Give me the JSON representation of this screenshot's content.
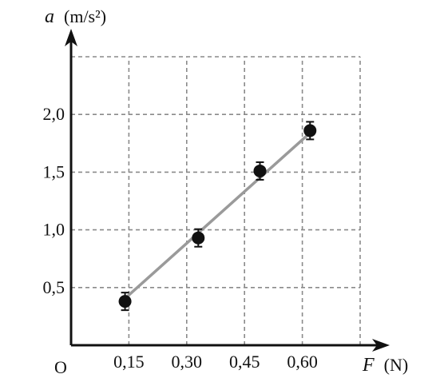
{
  "chart_data": {
    "type": "scatter",
    "x_axis": {
      "symbol": "F",
      "unit": "(N)"
    },
    "y_axis": {
      "symbol": "a",
      "unit": "(m/s²)"
    },
    "origin_label": "O",
    "x_tick_labels": [
      "0,15",
      "0,30",
      "0,45",
      "0,60"
    ],
    "x_ticks": [
      0.15,
      0.3,
      0.45,
      0.6
    ],
    "y_tick_labels": [
      "0,5",
      "1,0",
      "1,5",
      "2,0"
    ],
    "y_ticks": [
      0.5,
      1.0,
      1.5,
      2.0
    ],
    "xlim": [
      0,
      0.75
    ],
    "ylim": [
      0,
      2.5
    ],
    "grid": true,
    "grid_style": "dashed",
    "points": [
      {
        "x": 0.14,
        "y": 0.38
      },
      {
        "x": 0.33,
        "y": 0.93
      },
      {
        "x": 0.49,
        "y": 1.51
      },
      {
        "x": 0.62,
        "y": 1.86
      }
    ],
    "fit_line": {
      "x": [
        0.145,
        0.62
      ],
      "y": [
        0.42,
        1.84
      ]
    },
    "colors": {
      "points": "#111111",
      "fit_line": "#9a9a9a",
      "grid": "#8a8a8a",
      "axes": "#111111"
    }
  }
}
